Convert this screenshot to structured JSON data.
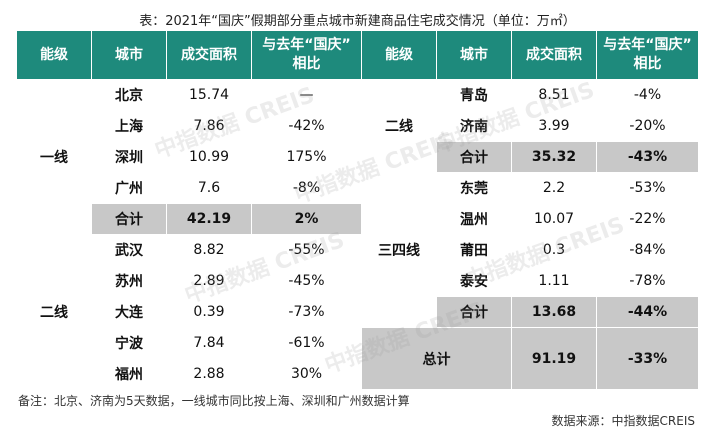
{
  "title": "表：2021年“国庆”假期部分重点城市新建商品住宅成交情况（单位：万㎡）",
  "headers": [
    "能级",
    "城市",
    "成交面积",
    "与去年“国庆”相比"
  ],
  "left": {
    "tier1_label": "一线",
    "tier1_rows": [
      {
        "city": "北京",
        "area": "15.74",
        "change": "—"
      },
      {
        "city": "上海",
        "area": "7.86",
        "change": "-42%"
      },
      {
        "city": "深圳",
        "area": "10.99",
        "change": "175%"
      },
      {
        "city": "广州",
        "area": "7.6",
        "change": "-8%"
      }
    ],
    "tier1_sum": {
      "city": "合计",
      "area": "42.19",
      "change": "2%"
    },
    "tier2_label": "二线",
    "tier2_rows": [
      {
        "city": "武汉",
        "area": "8.82",
        "change": "-55%"
      },
      {
        "city": "苏州",
        "area": "2.89",
        "change": "-45%"
      },
      {
        "city": "大连",
        "area": "0.39",
        "change": "-73%"
      },
      {
        "city": "宁波",
        "area": "7.84",
        "change": "-61%"
      },
      {
        "city": "福州",
        "area": "2.88",
        "change": "30%"
      }
    ]
  },
  "right": {
    "tier2_label": "二线",
    "tier2_rows": [
      {
        "city": "青岛",
        "area": "8.51",
        "change": "-4%"
      },
      {
        "city": "济南",
        "area": "3.99",
        "change": "-20%"
      }
    ],
    "tier2_sum": {
      "city": "合计",
      "area": "35.32",
      "change": "-43%"
    },
    "tier34_label": "三四线",
    "tier34_rows": [
      {
        "city": "东莞",
        "area": "2.2",
        "change": "-53%"
      },
      {
        "city": "温州",
        "area": "10.07",
        "change": "-22%"
      },
      {
        "city": "莆田",
        "area": "0.3",
        "change": "-84%"
      },
      {
        "city": "泰安",
        "area": "1.11",
        "change": "-78%"
      }
    ],
    "tier34_sum": {
      "city": "合计",
      "area": "13.68",
      "change": "-44%"
    },
    "total": {
      "label": "总计",
      "area": "91.19",
      "change": "-33%"
    }
  },
  "watermark": "中指数据 CREIS",
  "note": "备注：北京、济南为5天数据，一线城市同比按上海、深圳和广州数据计算",
  "source": "数据来源：中指数据CREIS"
}
